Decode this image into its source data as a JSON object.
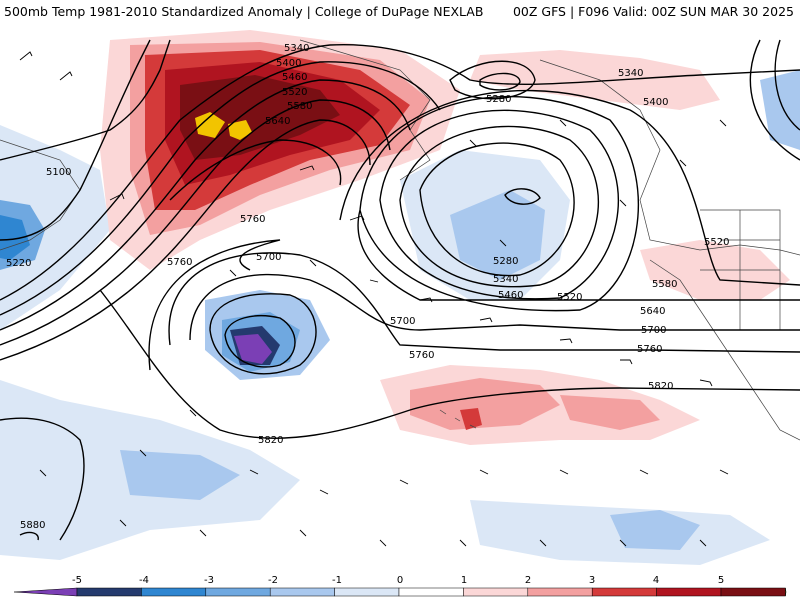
{
  "header": {
    "title_left": "500mb Temp 1981-2010 Standardized Anomaly | College of DuPage NEXLAB",
    "title_right": "00Z GFS | F096 Valid: 00Z SUN MAR 30 2025"
  },
  "contour_labels": [
    "5340",
    "5400",
    "5460",
    "5520",
    "5580",
    "5640",
    "5760",
    "5700",
    "5100",
    "5220",
    "5760",
    "5280",
    "5340",
    "5400",
    "5280",
    "5340",
    "5460",
    "5520",
    "5520",
    "5580",
    "5640",
    "5700",
    "5700",
    "5760",
    "5760",
    "5820",
    "5820",
    "5880"
  ],
  "colorbar": {
    "ticks": [
      "-5",
      "-4",
      "-3",
      "-2",
      "-1",
      "0",
      "1",
      "2",
      "3",
      "4",
      "5"
    ],
    "colors": [
      "#7b3fb5",
      "#243a6e",
      "#2f86d1",
      "#6fa8e0",
      "#a9c8ee",
      "#dbe7f6",
      "#ffffff",
      "#fbd7d7",
      "#f3a0a0",
      "#d43a3a",
      "#b01420",
      "#7a0f14",
      "#f2c400"
    ]
  },
  "colors": {
    "warm_strong": "#c81e2a",
    "warm_extreme": "#7a0f14",
    "cold_strong": "#2f86d1",
    "cold_extreme": "#7b3fb5"
  }
}
